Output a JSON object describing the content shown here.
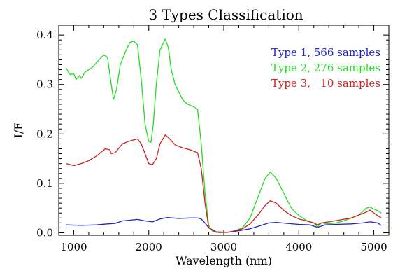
{
  "chart_data": {
    "type": "line",
    "title": "3 Types Classification",
    "xlabel": "Wavelength (nm)",
    "ylabel": "I/F",
    "xlim": [
      800,
      5200
    ],
    "ylim": [
      -0.005,
      0.42
    ],
    "xticks": [
      1000,
      2000,
      3000,
      4000,
      5000
    ],
    "yticks": [
      0.0,
      0.1,
      0.2,
      0.3,
      0.4
    ],
    "ytick_labels": [
      "0.0",
      "0.1",
      "0.2",
      "0.3",
      "0.4"
    ],
    "grid": false,
    "legend_position": "top-right",
    "series": [
      {
        "name": "Type 1, 566 samples",
        "color": "#2222cc",
        "points": [
          [
            900,
            0.016
          ],
          [
            1100,
            0.015
          ],
          [
            1300,
            0.016
          ],
          [
            1450,
            0.018
          ],
          [
            1550,
            0.019
          ],
          [
            1650,
            0.024
          ],
          [
            1850,
            0.027
          ],
          [
            1950,
            0.024
          ],
          [
            2050,
            0.022
          ],
          [
            2150,
            0.028
          ],
          [
            2250,
            0.031
          ],
          [
            2400,
            0.029
          ],
          [
            2550,
            0.03
          ],
          [
            2650,
            0.03
          ],
          [
            2700,
            0.028
          ],
          [
            2750,
            0.02
          ],
          [
            2800,
            0.01
          ],
          [
            2900,
            0.002
          ],
          [
            3050,
            0.001
          ],
          [
            3200,
            0.004
          ],
          [
            3350,
            0.008
          ],
          [
            3500,
            0.015
          ],
          [
            3600,
            0.02
          ],
          [
            3700,
            0.021
          ],
          [
            3850,
            0.019
          ],
          [
            4000,
            0.017
          ],
          [
            4150,
            0.016
          ],
          [
            4250,
            0.011
          ],
          [
            4350,
            0.016
          ],
          [
            4500,
            0.017
          ],
          [
            4700,
            0.018
          ],
          [
            4850,
            0.02
          ],
          [
            4950,
            0.022
          ],
          [
            5050,
            0.02
          ],
          [
            5100,
            0.015
          ]
        ]
      },
      {
        "name": "Type 2, 276 samples",
        "color": "#22dd22",
        "points": [
          [
            900,
            0.333
          ],
          [
            950,
            0.32
          ],
          [
            1000,
            0.322
          ],
          [
            1030,
            0.31
          ],
          [
            1080,
            0.318
          ],
          [
            1100,
            0.312
          ],
          [
            1150,
            0.325
          ],
          [
            1250,
            0.335
          ],
          [
            1350,
            0.352
          ],
          [
            1400,
            0.36
          ],
          [
            1450,
            0.355
          ],
          [
            1500,
            0.3
          ],
          [
            1530,
            0.27
          ],
          [
            1570,
            0.29
          ],
          [
            1620,
            0.34
          ],
          [
            1700,
            0.37
          ],
          [
            1750,
            0.385
          ],
          [
            1800,
            0.388
          ],
          [
            1850,
            0.38
          ],
          [
            1900,
            0.31
          ],
          [
            1950,
            0.22
          ],
          [
            2000,
            0.185
          ],
          [
            2030,
            0.183
          ],
          [
            2060,
            0.22
          ],
          [
            2100,
            0.3
          ],
          [
            2150,
            0.37
          ],
          [
            2220,
            0.392
          ],
          [
            2260,
            0.375
          ],
          [
            2300,
            0.33
          ],
          [
            2350,
            0.3
          ],
          [
            2400,
            0.285
          ],
          [
            2450,
            0.27
          ],
          [
            2500,
            0.262
          ],
          [
            2550,
            0.258
          ],
          [
            2600,
            0.255
          ],
          [
            2650,
            0.25
          ],
          [
            2700,
            0.18
          ],
          [
            2750,
            0.08
          ],
          [
            2800,
            0.015
          ],
          [
            2850,
            0.003
          ],
          [
            2950,
            0.0
          ],
          [
            3050,
            0.001
          ],
          [
            3150,
            0.004
          ],
          [
            3250,
            0.01
          ],
          [
            3350,
            0.03
          ],
          [
            3450,
            0.07
          ],
          [
            3550,
            0.11
          ],
          [
            3620,
            0.123
          ],
          [
            3700,
            0.11
          ],
          [
            3800,
            0.08
          ],
          [
            3900,
            0.05
          ],
          [
            4000,
            0.035
          ],
          [
            4100,
            0.025
          ],
          [
            4200,
            0.02
          ],
          [
            4250,
            0.012
          ],
          [
            4300,
            0.02
          ],
          [
            4400,
            0.018
          ],
          [
            4500,
            0.02
          ],
          [
            4600,
            0.024
          ],
          [
            4700,
            0.03
          ],
          [
            4800,
            0.036
          ],
          [
            4900,
            0.05
          ],
          [
            4950,
            0.052
          ],
          [
            5000,
            0.048
          ],
          [
            5050,
            0.045
          ],
          [
            5100,
            0.04
          ]
        ]
      },
      {
        "name": "Type 3,   10 samples",
        "color": "#cc2222",
        "points": [
          [
            900,
            0.14
          ],
          [
            1000,
            0.136
          ],
          [
            1100,
            0.14
          ],
          [
            1200,
            0.146
          ],
          [
            1300,
            0.155
          ],
          [
            1380,
            0.165
          ],
          [
            1420,
            0.17
          ],
          [
            1480,
            0.168
          ],
          [
            1500,
            0.16
          ],
          [
            1550,
            0.162
          ],
          [
            1650,
            0.18
          ],
          [
            1750,
            0.186
          ],
          [
            1850,
            0.19
          ],
          [
            1900,
            0.18
          ],
          [
            1950,
            0.16
          ],
          [
            2000,
            0.14
          ],
          [
            2050,
            0.138
          ],
          [
            2100,
            0.15
          ],
          [
            2150,
            0.18
          ],
          [
            2220,
            0.198
          ],
          [
            2280,
            0.19
          ],
          [
            2350,
            0.178
          ],
          [
            2450,
            0.172
          ],
          [
            2550,
            0.168
          ],
          [
            2650,
            0.162
          ],
          [
            2700,
            0.13
          ],
          [
            2750,
            0.06
          ],
          [
            2800,
            0.01
          ],
          [
            2900,
            0.001
          ],
          [
            3050,
            0.001
          ],
          [
            3150,
            0.004
          ],
          [
            3250,
            0.008
          ],
          [
            3350,
            0.018
          ],
          [
            3450,
            0.035
          ],
          [
            3550,
            0.055
          ],
          [
            3620,
            0.065
          ],
          [
            3700,
            0.06
          ],
          [
            3800,
            0.045
          ],
          [
            3900,
            0.035
          ],
          [
            4000,
            0.028
          ],
          [
            4100,
            0.024
          ],
          [
            4200,
            0.02
          ],
          [
            4250,
            0.016
          ],
          [
            4300,
            0.02
          ],
          [
            4400,
            0.022
          ],
          [
            4550,
            0.026
          ],
          [
            4700,
            0.03
          ],
          [
            4800,
            0.036
          ],
          [
            4900,
            0.042
          ],
          [
            4950,
            0.046
          ],
          [
            5000,
            0.04
          ],
          [
            5050,
            0.035
          ],
          [
            5100,
            0.03
          ]
        ]
      }
    ]
  }
}
